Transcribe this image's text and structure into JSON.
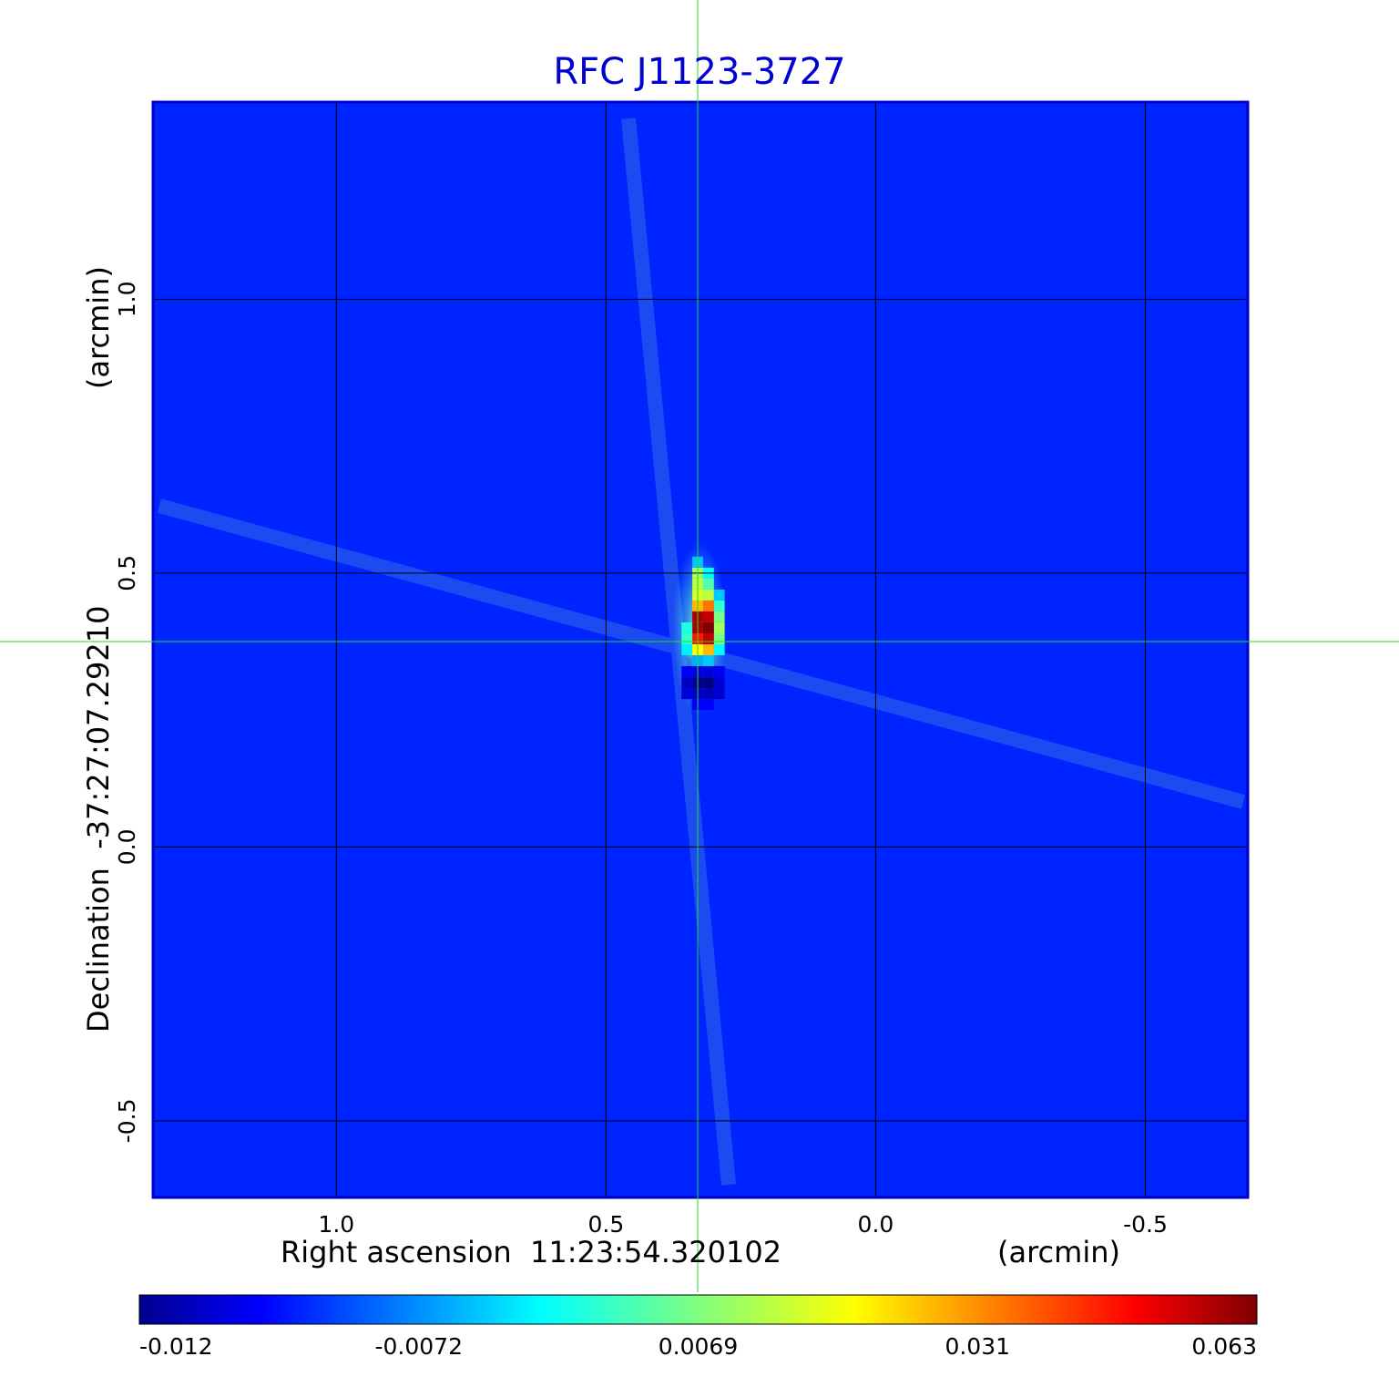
{
  "chart_data": {
    "type": "heatmap",
    "title": "RFC J1123-3727",
    "xlabel": "Right ascension  11:23:54.320102",
    "xunit": "(arcmin)",
    "ylabel": "Declination  -37:27:07.29210",
    "yunit": "(arcmin)",
    "x_ticks": [
      1.0,
      0.5,
      0.0,
      -0.5
    ],
    "x_tick_labels": [
      "1.0",
      "0.5",
      "0.0",
      "-0.5"
    ],
    "y_ticks": [
      1.0,
      0.5,
      0.0,
      -0.5
    ],
    "y_tick_labels": [
      "1.0",
      "0.5",
      "0.0",
      "-0.5"
    ],
    "xlim": [
      1.34,
      -0.69
    ],
    "ylim": [
      -0.64,
      1.36
    ],
    "x_reversed": true,
    "grid": true,
    "crosshair": {
      "x": 0.33,
      "y": 0.375
    },
    "colorbar": {
      "colormap": "jet",
      "tick_labels": [
        "-0.012",
        "-0.0072",
        "0.0069",
        "0.031",
        "0.063"
      ],
      "min": -0.012,
      "max": 0.063,
      "placement": "bottom"
    },
    "background_level": 0.0,
    "source": {
      "peak": 0.063,
      "negative_min": -0.012,
      "cells": [
        {
          "x": 0.33,
          "y": 0.52,
          "v": 0.012
        },
        {
          "x": 0.31,
          "y": 0.5,
          "v": 0.016
        },
        {
          "x": 0.33,
          "y": 0.5,
          "v": 0.028
        },
        {
          "x": 0.31,
          "y": 0.48,
          "v": 0.022
        },
        {
          "x": 0.33,
          "y": 0.48,
          "v": 0.03
        },
        {
          "x": 0.29,
          "y": 0.46,
          "v": 0.012
        },
        {
          "x": 0.31,
          "y": 0.46,
          "v": 0.03
        },
        {
          "x": 0.33,
          "y": 0.46,
          "v": 0.032
        },
        {
          "x": 0.29,
          "y": 0.44,
          "v": 0.02
        },
        {
          "x": 0.31,
          "y": 0.44,
          "v": 0.045
        },
        {
          "x": 0.33,
          "y": 0.44,
          "v": 0.04
        },
        {
          "x": 0.29,
          "y": 0.42,
          "v": 0.025
        },
        {
          "x": 0.31,
          "y": 0.42,
          "v": 0.058
        },
        {
          "x": 0.33,
          "y": 0.42,
          "v": 0.06
        },
        {
          "x": 0.29,
          "y": 0.4,
          "v": 0.028
        },
        {
          "x": 0.31,
          "y": 0.4,
          "v": 0.063
        },
        {
          "x": 0.33,
          "y": 0.4,
          "v": 0.06
        },
        {
          "x": 0.35,
          "y": 0.4,
          "v": 0.018
        },
        {
          "x": 0.29,
          "y": 0.38,
          "v": 0.025
        },
        {
          "x": 0.31,
          "y": 0.38,
          "v": 0.058
        },
        {
          "x": 0.33,
          "y": 0.38,
          "v": 0.052
        },
        {
          "x": 0.35,
          "y": 0.38,
          "v": 0.02
        },
        {
          "x": 0.29,
          "y": 0.36,
          "v": 0.016
        },
        {
          "x": 0.31,
          "y": 0.36,
          "v": 0.04
        },
        {
          "x": 0.33,
          "y": 0.36,
          "v": 0.035
        },
        {
          "x": 0.35,
          "y": 0.36,
          "v": 0.015
        },
        {
          "x": 0.31,
          "y": 0.34,
          "v": 0.012
        },
        {
          "x": 0.33,
          "y": 0.34,
          "v": 0.01
        },
        {
          "x": 0.29,
          "y": 0.32,
          "v": -0.004
        },
        {
          "x": 0.31,
          "y": 0.32,
          "v": -0.005
        },
        {
          "x": 0.33,
          "y": 0.32,
          "v": -0.005
        },
        {
          "x": 0.35,
          "y": 0.32,
          "v": -0.003
        },
        {
          "x": 0.29,
          "y": 0.3,
          "v": -0.006
        },
        {
          "x": 0.31,
          "y": 0.3,
          "v": -0.012
        },
        {
          "x": 0.33,
          "y": 0.3,
          "v": -0.011
        },
        {
          "x": 0.35,
          "y": 0.3,
          "v": -0.007
        },
        {
          "x": 0.29,
          "y": 0.28,
          "v": -0.006
        },
        {
          "x": 0.31,
          "y": 0.28,
          "v": -0.008
        },
        {
          "x": 0.33,
          "y": 0.28,
          "v": -0.007
        },
        {
          "x": 0.35,
          "y": 0.28,
          "v": -0.005
        },
        {
          "x": 0.31,
          "y": 0.26,
          "v": -0.003
        },
        {
          "x": 0.33,
          "y": 0.26,
          "v": -0.003
        }
      ]
    }
  }
}
